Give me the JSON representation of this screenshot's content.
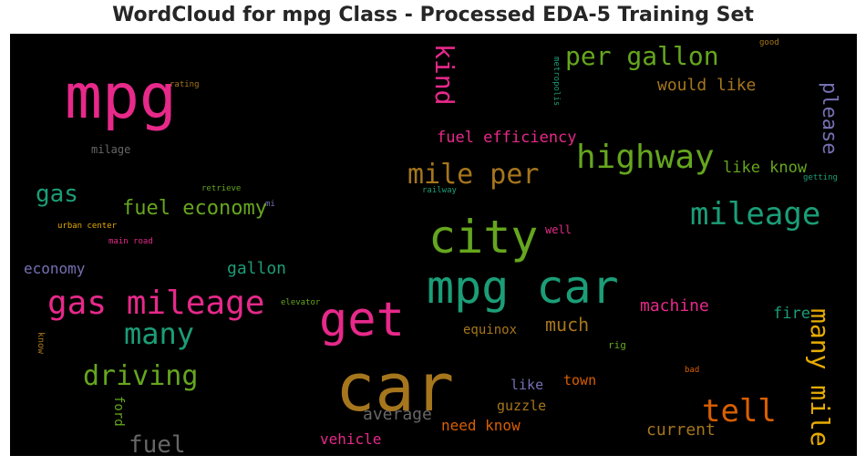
{
  "title": "WordCloud for mpg Class - Processed EDA-5 Training Set",
  "words": {
    "mpg": {
      "text": "mpg",
      "color": "#e7298a"
    },
    "car": {
      "text": "car",
      "color": "#a6761d"
    },
    "mpg_car": {
      "text": "mpg car",
      "color": "#1b9e77"
    },
    "city": {
      "text": "city",
      "color": "#66a61e"
    },
    "get": {
      "text": "get",
      "color": "#e7298a"
    },
    "gas_mileage": {
      "text": "gas mileage",
      "color": "#e7298a"
    },
    "highway": {
      "text": "highway",
      "color": "#66a61e"
    },
    "mileage": {
      "text": "mileage",
      "color": "#1b9e77"
    },
    "per_gallon": {
      "text": "per gallon",
      "color": "#66a61e"
    },
    "mile_per": {
      "text": "mile per",
      "color": "#a6761d"
    },
    "kind": {
      "text": "kind",
      "color": "#e7298a"
    },
    "many": {
      "text": "many",
      "color": "#1b9e77"
    },
    "driving": {
      "text": "driving",
      "color": "#66a61e"
    },
    "tell": {
      "text": "tell",
      "color": "#d95f02"
    },
    "many_mile": {
      "text": "many mile",
      "color": "#e6ab02"
    },
    "please": {
      "text": "please",
      "color": "#7570b3"
    },
    "fuel_economy": {
      "text": "fuel economy",
      "color": "#66a61e"
    },
    "gas": {
      "text": "gas",
      "color": "#1b9e77"
    },
    "fuel": {
      "text": "fuel",
      "color": "#666666"
    },
    "would_like": {
      "text": "would like",
      "color": "#a6761d"
    },
    "fuel_efficiency": {
      "text": "fuel efficiency",
      "color": "#e7298a"
    },
    "like_know": {
      "text": "like know",
      "color": "#66a61e"
    },
    "gallon": {
      "text": "gallon",
      "color": "#1b9e77"
    },
    "economy": {
      "text": "economy",
      "color": "#7570b3"
    },
    "machine": {
      "text": "machine",
      "color": "#e7298a"
    },
    "much": {
      "text": "much",
      "color": "#a6761d"
    },
    "fire": {
      "text": "fire",
      "color": "#1b9e77"
    },
    "average": {
      "text": "average",
      "color": "#666666"
    },
    "current": {
      "text": "current",
      "color": "#a6761d"
    },
    "need_know": {
      "text": "need know",
      "color": "#d95f02"
    },
    "vehicle": {
      "text": "vehicle",
      "color": "#e7298a"
    },
    "guzzle": {
      "text": "guzzle",
      "color": "#a6761d"
    },
    "like": {
      "text": "like",
      "color": "#7570b3"
    },
    "town": {
      "text": "town",
      "color": "#d95f02"
    },
    "equinox": {
      "text": "equinox",
      "color": "#a6761d"
    },
    "ford": {
      "text": "ford",
      "color": "#66a61e"
    },
    "milage": {
      "text": "milage",
      "color": "#666666"
    },
    "rating": {
      "text": "rating",
      "color": "#a6761d"
    },
    "metropolis": {
      "text": "metropolis",
      "color": "#1b9e77"
    },
    "good": {
      "text": "good",
      "color": "#a6761d"
    },
    "retrieve": {
      "text": "retrieve",
      "color": "#66a61e"
    },
    "mi": {
      "text": "mi",
      "color": "#7570b3"
    },
    "railway": {
      "text": "railway",
      "color": "#1b9e77"
    },
    "getting": {
      "text": "getting",
      "color": "#1b9e77"
    },
    "urban_center": {
      "text": "urban center",
      "color": "#e6ab02"
    },
    "main_road": {
      "text": "main road",
      "color": "#e7298a"
    },
    "well": {
      "text": "well",
      "color": "#e7298a"
    },
    "elevator": {
      "text": "elevator",
      "color": "#66a61e"
    },
    "know": {
      "text": "know",
      "color": "#a6761d"
    },
    "rig": {
      "text": "rig",
      "color": "#66a61e"
    },
    "bad": {
      "text": "bad",
      "color": "#d95f02"
    }
  }
}
